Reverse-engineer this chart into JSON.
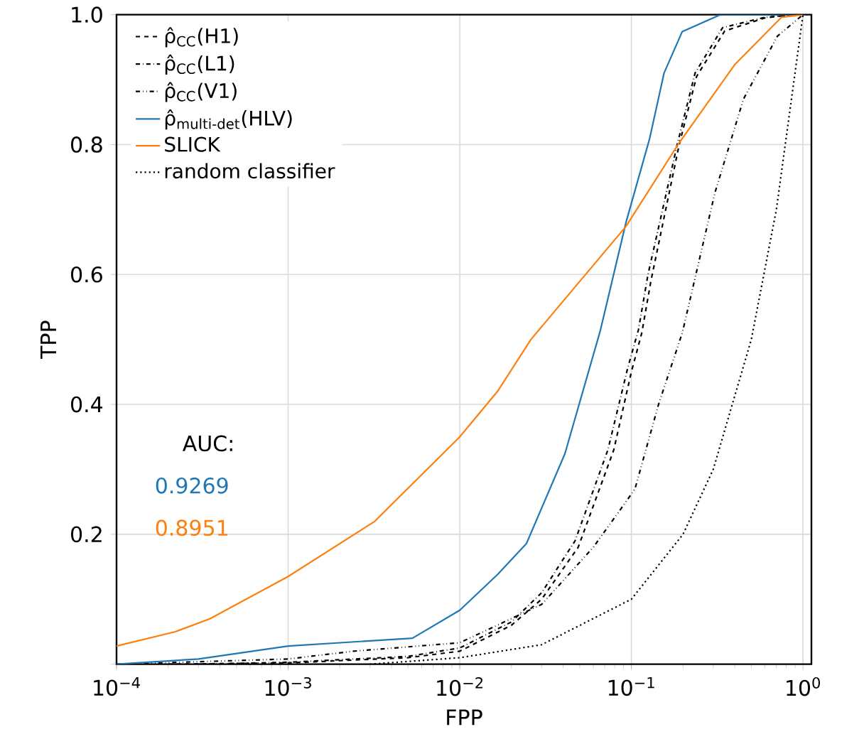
{
  "chart_data": {
    "type": "line",
    "xlabel": "FPP",
    "ylabel": "TPP",
    "log": "x",
    "grid": true,
    "legend": "top left",
    "xlim": [
      0.0001,
      1.12
    ],
    "ylim": [
      0,
      1
    ],
    "xticks": [
      {
        "value": 0.0001,
        "label": "10$^{−4}$"
      },
      {
        "value": 0.001,
        "label": "10$^{−3}$"
      },
      {
        "value": 0.01,
        "label": "10$^{−2}$"
      },
      {
        "value": 0.1,
        "label": "10$^{−1}$"
      },
      {
        "value": 1,
        "label": "10$^{0}$"
      }
    ],
    "yticks": [
      {
        "value": 0,
        "label": null
      },
      0.2,
      0.4,
      0.6,
      0.8,
      {
        "value": 1,
        "label": "1.0"
      }
    ],
    "annotations": [
      "AUC:",
      "0.9269",
      "0.8951"
    ],
    "series": [
      {
        "name": "ρ̂$_{CC}$(H1)",
        "color": "#000000",
        "line_style": "dashed",
        "x": [
          0.0002,
          0.001,
          0.005,
          0.01,
          0.02,
          0.03,
          0.049,
          0.079,
          0.1,
          0.115,
          0.13,
          0.19,
          0.24,
          0.35,
          0.6,
          0.85
        ],
        "values": [
          0,
          0.002,
          0.01,
          0.02,
          0.06,
          0.1,
          0.18,
          0.33,
          0.45,
          0.51,
          0.59,
          0.8,
          0.905,
          0.975,
          0.995,
          1
        ]
      },
      {
        "name": "ρ̂$_{CC}$(L1)",
        "color": "#000000",
        "line_style": "dashdot",
        "x": [
          0.0003,
          0.001,
          0.005,
          0.01,
          0.02,
          0.03,
          0.047,
          0.073,
          0.095,
          0.11,
          0.125,
          0.185,
          0.235,
          0.34,
          0.6,
          0.93
        ],
        "values": [
          0,
          0.003,
          0.012,
          0.025,
          0.065,
          0.11,
          0.19,
          0.33,
          0.455,
          0.515,
          0.6,
          0.8,
          0.91,
          0.98,
          0.996,
          1
        ]
      },
      {
        "name": "ρ̂$_{CC}$(V1)",
        "color": "#000000",
        "line_style": "dashdotdot",
        "x": [
          0.0001,
          0.001,
          0.0024,
          0.01,
          0.03,
          0.06,
          0.093,
          0.105,
          0.144,
          0.198,
          0.307,
          0.45,
          0.71,
          1
        ],
        "values": [
          0,
          0.008,
          0.02,
          0.033,
          0.092,
          0.18,
          0.25,
          0.27,
          0.4,
          0.51,
          0.726,
          0.87,
          0.967,
          1
        ]
      },
      {
        "name": "ρ̂$_{multi-det}$(HLV)",
        "color": "#1f77b4",
        "line_style": "solid",
        "x": [
          0.0001,
          0.0003,
          0.001,
          0.0053,
          0.01,
          0.0166,
          0.0245,
          0.041,
          0.066,
          0.093,
          0.128,
          0.155,
          0.198,
          0.33,
          0.95
        ],
        "values": [
          0,
          0.008,
          0.028,
          0.04,
          0.083,
          0.138,
          0.186,
          0.324,
          0.514,
          0.68,
          0.81,
          0.91,
          0.974,
          1,
          1
        ]
      },
      {
        "name": "SLICK",
        "color": "#ff7f0e",
        "line_style": "solid",
        "x": [
          0.0001,
          0.00022,
          0.00035,
          0.001,
          0.0032,
          0.01,
          0.0166,
          0.026,
          0.093,
          0.187,
          0.4,
          0.75,
          1
        ],
        "values": [
          0.028,
          0.05,
          0.07,
          0.135,
          0.22,
          0.35,
          0.42,
          0.5,
          0.674,
          0.8,
          0.923,
          0.996,
          1
        ]
      },
      {
        "name": "random classifier",
        "color": "#000000",
        "line_style": "dotted",
        "x": [
          0.003,
          0.01,
          0.03,
          0.1,
          0.2,
          0.3,
          0.5,
          0.7,
          1
        ],
        "values": [
          0,
          0.01,
          0.03,
          0.1,
          0.2,
          0.3,
          0.5,
          0.7,
          1
        ]
      }
    ]
  }
}
